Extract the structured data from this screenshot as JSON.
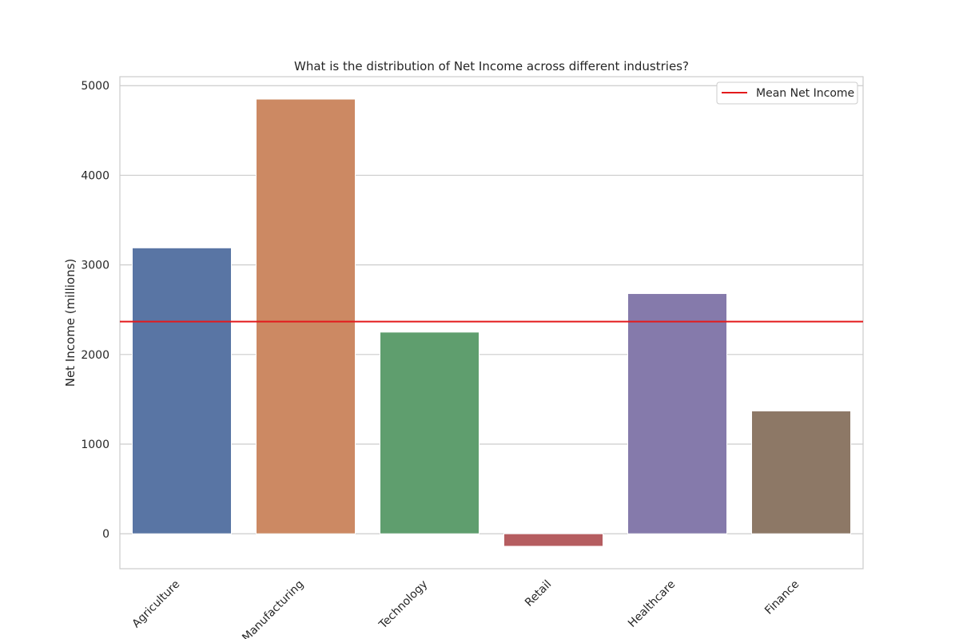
{
  "chart_data": {
    "type": "bar",
    "title": "What is the distribution of Net Income across different industries?",
    "xlabel": "",
    "ylabel": "Net Income (millions)",
    "categories": [
      "Agriculture",
      "Manufacturing",
      "Technology",
      "Retail",
      "Healthcare",
      "Finance"
    ],
    "values": [
      3190,
      4850,
      2250,
      -140,
      2680,
      1370
    ],
    "colors": [
      "#5975a4",
      "#cc8963",
      "#5f9e6e",
      "#b55d60",
      "#857aab",
      "#8d7866"
    ],
    "ylim": [
      -390,
      5100
    ],
    "yticks": [
      0,
      1000,
      2000,
      3000,
      4000,
      5000
    ],
    "grid": true,
    "reference_line": {
      "label": "Mean Net Income",
      "value": 2367,
      "color": "#e31a1c"
    },
    "legend": {
      "position": "top-right",
      "entries": [
        "Mean Net Income"
      ]
    }
  }
}
